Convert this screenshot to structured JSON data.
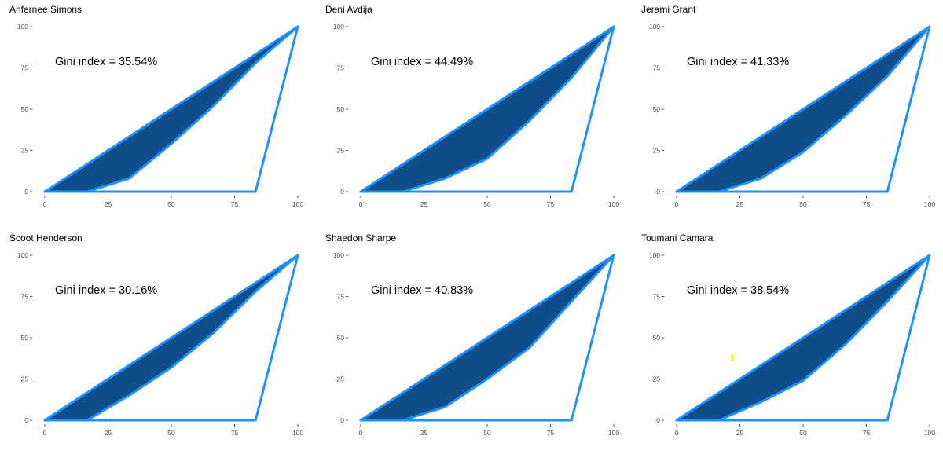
{
  "chart_data": [
    {
      "type": "area",
      "title": "Anfernee Simons",
      "annotation": "Gini index = 35.54%",
      "xlim": [
        0,
        100
      ],
      "ylim": [
        0,
        100
      ],
      "x_ticks": [
        0,
        25,
        50,
        75,
        100
      ],
      "y_ticks": [
        0,
        25,
        50,
        75,
        100
      ],
      "equality_line": [
        [
          0,
          0
        ],
        [
          100,
          100
        ]
      ],
      "lorenz_curve": [
        [
          0,
          0
        ],
        [
          16.7,
          0
        ],
        [
          33.3,
          8
        ],
        [
          50,
          29
        ],
        [
          66.7,
          52
        ],
        [
          83.3,
          78
        ],
        [
          100,
          100
        ]
      ],
      "perfect_inequality": [
        [
          0,
          0
        ],
        [
          83.3,
          0
        ],
        [
          100,
          100
        ]
      ],
      "grid": false
    },
    {
      "type": "area",
      "title": "Deni Avdija",
      "annotation": "Gini index = 44.49%",
      "xlim": [
        0,
        100
      ],
      "ylim": [
        0,
        100
      ],
      "x_ticks": [
        0,
        25,
        50,
        75,
        100
      ],
      "y_ticks": [
        0,
        25,
        50,
        75,
        100
      ],
      "equality_line": [
        [
          0,
          0
        ],
        [
          100,
          100
        ]
      ],
      "lorenz_curve": [
        [
          0,
          0
        ],
        [
          16.7,
          0
        ],
        [
          33.3,
          8
        ],
        [
          50,
          20
        ],
        [
          66.7,
          43
        ],
        [
          83.3,
          69
        ],
        [
          100,
          100
        ]
      ],
      "perfect_inequality": [
        [
          0,
          0
        ],
        [
          83.3,
          0
        ],
        [
          100,
          100
        ]
      ],
      "grid": false
    },
    {
      "type": "area",
      "title": "Jerami Grant",
      "annotation": "Gini index = 41.33%",
      "xlim": [
        0,
        100
      ],
      "ylim": [
        0,
        100
      ],
      "x_ticks": [
        0,
        25,
        50,
        75,
        100
      ],
      "y_ticks": [
        0,
        25,
        50,
        75,
        100
      ],
      "equality_line": [
        [
          0,
          0
        ],
        [
          100,
          100
        ]
      ],
      "lorenz_curve": [
        [
          0,
          0
        ],
        [
          16.7,
          0
        ],
        [
          33.3,
          8
        ],
        [
          50,
          24
        ],
        [
          66.7,
          46
        ],
        [
          83.3,
          70
        ],
        [
          100,
          100
        ]
      ],
      "perfect_inequality": [
        [
          0,
          0
        ],
        [
          83.3,
          0
        ],
        [
          100,
          100
        ]
      ],
      "grid": false
    },
    {
      "type": "area",
      "title": "Scoot Henderson",
      "annotation": "Gini index = 30.16%",
      "xlim": [
        0,
        100
      ],
      "ylim": [
        0,
        100
      ],
      "x_ticks": [
        0,
        25,
        50,
        75,
        100
      ],
      "y_ticks": [
        0,
        25,
        50,
        75,
        100
      ],
      "equality_line": [
        [
          0,
          0
        ],
        [
          100,
          100
        ]
      ],
      "lorenz_curve": [
        [
          0,
          0
        ],
        [
          16.7,
          0
        ],
        [
          33.3,
          15
        ],
        [
          50,
          32
        ],
        [
          66.7,
          53
        ],
        [
          83.3,
          78
        ],
        [
          100,
          100
        ]
      ],
      "perfect_inequality": [
        [
          0,
          0
        ],
        [
          83.3,
          0
        ],
        [
          100,
          100
        ]
      ],
      "grid": false
    },
    {
      "type": "area",
      "title": "Shaedon Sharpe",
      "annotation": "Gini index = 40.83%",
      "xlim": [
        0,
        100
      ],
      "ylim": [
        0,
        100
      ],
      "x_ticks": [
        0,
        25,
        50,
        75,
        100
      ],
      "y_ticks": [
        0,
        25,
        50,
        75,
        100
      ],
      "equality_line": [
        [
          0,
          0
        ],
        [
          100,
          100
        ]
      ],
      "lorenz_curve": [
        [
          0,
          0
        ],
        [
          16.7,
          0
        ],
        [
          33.3,
          8
        ],
        [
          50,
          25
        ],
        [
          66.7,
          44
        ],
        [
          83.3,
          72
        ],
        [
          100,
          100
        ]
      ],
      "perfect_inequality": [
        [
          0,
          0
        ],
        [
          83.3,
          0
        ],
        [
          100,
          100
        ]
      ],
      "grid": false
    },
    {
      "type": "area",
      "title": "Toumani Camara",
      "annotation": "Gini index = 38.54%",
      "xlim": [
        0,
        100
      ],
      "ylim": [
        0,
        100
      ],
      "x_ticks": [
        0,
        25,
        50,
        75,
        100
      ],
      "y_ticks": [
        0,
        25,
        50,
        75,
        100
      ],
      "equality_line": [
        [
          0,
          0
        ],
        [
          100,
          100
        ]
      ],
      "lorenz_curve": [
        [
          0,
          0
        ],
        [
          16.7,
          0
        ],
        [
          33.3,
          11
        ],
        [
          50,
          24
        ],
        [
          66.7,
          46
        ],
        [
          83.3,
          72
        ],
        [
          100,
          100
        ]
      ],
      "perfect_inequality": [
        [
          0,
          0
        ],
        [
          83.3,
          0
        ],
        [
          100,
          100
        ]
      ],
      "grid": false,
      "marker": {
        "x": 22,
        "y": 38,
        "color": "#FFFF00"
      }
    }
  ],
  "colors": {
    "line": "#1E90FF",
    "fill": "#104E8B",
    "background": "#FFFFFF",
    "tick": "#4D4D4D"
  }
}
